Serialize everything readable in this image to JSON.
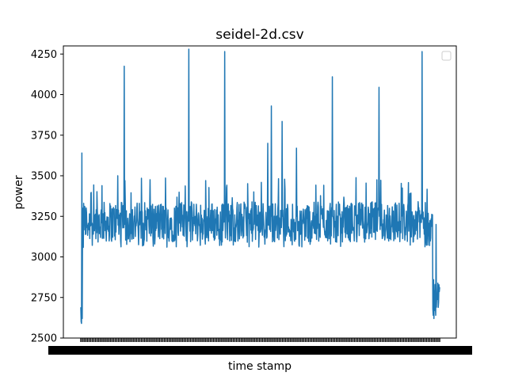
{
  "chart_data": {
    "type": "line",
    "title": "seidel-2d.csv",
    "xlabel": "time stamp",
    "ylabel": "power",
    "ylim": [
      2500,
      4300
    ],
    "yticks": [
      2500,
      2750,
      3000,
      3250,
      3500,
      3750,
      4000,
      4250
    ],
    "xlim": [
      0,
      1000
    ],
    "legend": {
      "placement": "top-right",
      "entries": []
    },
    "grid": false,
    "series": [
      {
        "color": "#1f77b4",
        "baseline_low": 3070,
        "baseline_high": 3360,
        "points": [
          [
            0,
            2690
          ],
          [
            1,
            2600
          ],
          [
            2,
            2590
          ],
          [
            3,
            3640
          ],
          [
            4,
            2620
          ],
          [
            5,
            3300
          ],
          [
            6,
            3100
          ],
          [
            8,
            3330
          ],
          [
            120,
            3180
          ],
          [
            121,
            4175
          ],
          [
            122,
            3200
          ],
          [
            123,
            3470
          ],
          [
            103,
            3500
          ],
          [
            300,
            3220
          ],
          [
            301,
            4280
          ],
          [
            302,
            3250
          ],
          [
            400,
            3230
          ],
          [
            401,
            4265
          ],
          [
            402,
            3240
          ],
          [
            520,
            3270
          ],
          [
            521,
            3700
          ],
          [
            522,
            3230
          ],
          [
            530,
            3290
          ],
          [
            531,
            3930
          ],
          [
            532,
            3250
          ],
          [
            560,
            3280
          ],
          [
            561,
            3835
          ],
          [
            562,
            3250
          ],
          [
            600,
            3300
          ],
          [
            601,
            3670
          ],
          [
            602,
            3250
          ],
          [
            700,
            3290
          ],
          [
            701,
            4110
          ],
          [
            702,
            3250
          ],
          [
            830,
            3290
          ],
          [
            831,
            4045
          ],
          [
            832,
            3250
          ],
          [
            950,
            3300
          ],
          [
            951,
            4265
          ],
          [
            952,
            3250
          ],
          [
            980,
            3260
          ],
          [
            981,
            2680
          ],
          [
            982,
            2640
          ],
          [
            983,
            2860
          ],
          [
            984,
            2620
          ],
          [
            985,
            2790
          ],
          [
            986,
            2670
          ],
          [
            987,
            2830
          ],
          [
            988,
            2700
          ],
          [
            989,
            2640
          ],
          [
            990,
            3200
          ],
          [
            991,
            2690
          ]
        ]
      }
    ]
  }
}
